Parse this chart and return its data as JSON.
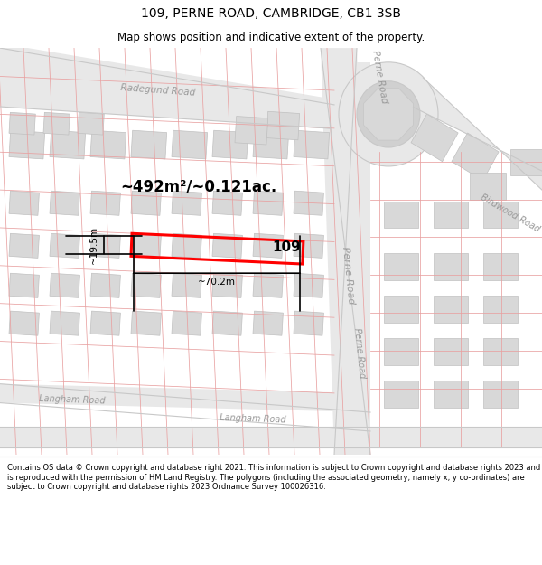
{
  "title": "109, PERNE ROAD, CAMBRIDGE, CB1 3SB",
  "subtitle": "Map shows position and indicative extent of the property.",
  "footer": "Contains OS data © Crown copyright and database right 2021. This information is subject to Crown copyright and database rights 2023 and is reproduced with the permission of HM Land Registry. The polygons (including the associated geometry, namely x, y co-ordinates) are subject to Crown copyright and database rights 2023 Ordnance Survey 100026316.",
  "area_text": "~492m²/~0.121ac.",
  "width_text": "~70.2m",
  "height_text": "~19.5m",
  "property_number": "109",
  "title_fontsize": 10,
  "subtitle_fontsize": 8.5,
  "footer_fontsize": 6.0,
  "road_fill": "#e8e8e8",
  "road_edge": "#c8c8c8",
  "building_fill": "#d8d8d8",
  "building_edge": "#c0c0c0",
  "cadastral_color": "#e8a0a0",
  "highlight_color": "#ff0000",
  "road_label_color": "#9a9a9a",
  "map_bg": "#ffffff"
}
